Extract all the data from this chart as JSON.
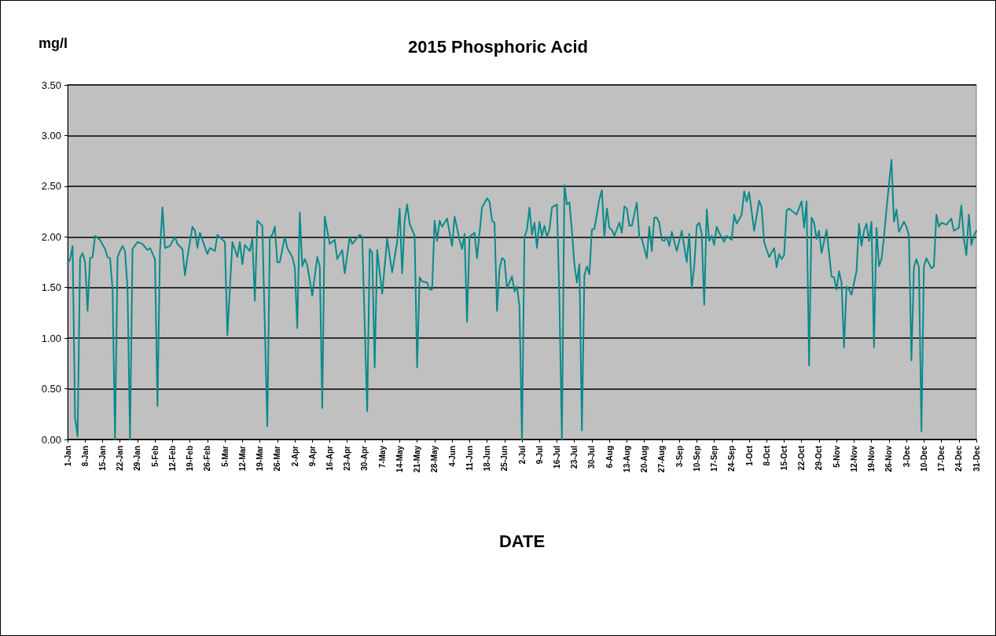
{
  "chart_data": {
    "type": "line",
    "title": "2015 Phosphoric Acid",
    "xlabel": "DATE",
    "ylabel": "mg/l",
    "x": [
      "--01-01",
      "--01-02",
      "--01-03",
      "--01-04",
      "--01-05",
      "--01-06",
      "--01-07",
      "--01-08",
      "--01-09",
      "--01-10",
      "--01-11",
      "--01-12",
      "--01-14",
      "--01-16",
      "--01-17",
      "--01-18",
      "--01-19",
      "--01-20",
      "--01-21",
      "--01-22",
      "--01-23",
      "--01-24",
      "--01-25",
      "--01-26",
      "--01-27",
      "--01-29",
      "--01-31",
      "--02-02",
      "--02-03",
      "--02-05",
      "--02-06",
      "--02-07",
      "--02-08",
      "--02-09",
      "--02-11",
      "--02-13",
      "--02-14",
      "--02-16",
      "--02-17",
      "--02-18",
      "--02-20",
      "--02-21",
      "--02-22",
      "--02-23",
      "--02-26",
      "--02-27",
      "--03-01",
      "--03-02",
      "--03-05",
      "--03-06",
      "--03-08",
      "--03-10",
      "--03-11",
      "--03-12",
      "--03-13",
      "--03-15",
      "--03-16",
      "--03-17",
      "--03-18",
      "--03-20",
      "--03-22",
      "--03-23",
      "--03-24",
      "--03-25",
      "--03-26",
      "--03-27",
      "--03-29",
      "--03-30",
      "--04-01",
      "--04-02",
      "--04-03",
      "--04-04",
      "--04-05",
      "--04-06",
      "--04-07",
      "--04-09",
      "--04-11",
      "--04-12",
      "--04-13",
      "--04-14",
      "--04-16",
      "--04-18",
      "--04-19",
      "--04-21",
      "--04-22",
      "--04-24",
      "--04-25",
      "--04-28",
      "--04-29",
      "--05-01",
      "--05-02",
      "--05-03",
      "--05-04",
      "--05-05",
      "--05-07",
      "--05-09",
      "--05-11",
      "--05-13",
      "--05-14",
      "--05-15",
      "--05-16",
      "--05-17",
      "--05-18",
      "--05-20",
      "--05-21",
      "--05-22",
      "--05-23",
      "--05-25",
      "--05-26",
      "--05-27",
      "--05-28",
      "--05-29",
      "--05-30",
      "--05-31",
      "--06-02",
      "--06-04",
      "--06-05",
      "--06-07",
      "--06-08",
      "--06-09",
      "--06-10",
      "--06-11",
      "--06-13",
      "--06-14",
      "--06-16",
      "--06-18",
      "--06-19",
      "--06-20",
      "--06-21",
      "--06-22",
      "--06-23",
      "--06-24",
      "--06-25",
      "--06-26",
      "--06-28",
      "--06-29",
      "--06-30",
      "--07-01",
      "--07-02",
      "--07-03",
      "--07-04",
      "--07-05",
      "--07-06",
      "--07-07",
      "--07-08",
      "--07-09",
      "--07-10",
      "--07-11",
      "--07-12",
      "--07-13",
      "--07-14",
      "--07-16",
      "--07-17",
      "--07-18",
      "--07-19",
      "--07-20",
      "--07-21",
      "--07-22",
      "--07-23",
      "--07-24",
      "--07-25",
      "--07-26",
      "--07-27",
      "--07-28",
      "--07-29",
      "--07-30",
      "--07-31",
      "--08-02",
      "--08-03",
      "--08-04",
      "--08-05",
      "--08-06",
      "--08-07",
      "--08-08",
      "--08-10",
      "--08-11",
      "--08-12",
      "--08-13",
      "--08-14",
      "--08-15",
      "--08-17",
      "--08-18",
      "--08-19",
      "--08-21",
      "--08-22",
      "--08-23",
      "--08-24",
      "--08-25",
      "--08-26",
      "--08-27",
      "--08-28",
      "--08-29",
      "--08-30",
      "--08-31",
      "--09-02",
      "--09-04",
      "--09-06",
      "--09-07",
      "--09-08",
      "--09-09",
      "--09-10",
      "--09-11",
      "--09-12",
      "--09-13",
      "--09-14",
      "--09-15",
      "--09-16",
      "--09-17",
      "--09-18",
      "--09-19",
      "--09-21",
      "--09-22",
      "--09-24",
      "--09-25",
      "--09-26",
      "--09-28",
      "--09-29",
      "--09-30",
      "--10-01",
      "--10-03",
      "--10-05",
      "--10-06",
      "--10-07",
      "--10-09",
      "--10-11",
      "--10-12",
      "--10-13",
      "--10-14",
      "--10-15",
      "--10-16",
      "--10-17",
      "--10-20",
      "--10-22",
      "--10-23",
      "--10-24",
      "--10-25",
      "--10-26",
      "--10-27",
      "--10-28",
      "--10-29",
      "--10-30",
      "--11-01",
      "--11-03",
      "--11-04",
      "--11-05",
      "--11-06",
      "--11-07",
      "--11-08",
      "--11-09",
      "--11-10",
      "--11-11",
      "--11-13",
      "--11-14",
      "--11-15",
      "--11-16",
      "--11-17",
      "--11-18",
      "--11-19",
      "--11-20",
      "--11-21",
      "--11-22",
      "--11-23",
      "--11-24",
      "--11-25",
      "--11-27",
      "--11-28",
      "--11-29",
      "--11-30",
      "--12-02",
      "--12-03",
      "--12-04",
      "--12-05",
      "--12-06",
      "--12-07",
      "--12-08",
      "--12-09",
      "--12-10",
      "--12-11",
      "--12-13",
      "--12-14",
      "--12-15",
      "--12-16",
      "--12-17",
      "--12-19",
      "--12-21",
      "--12-22",
      "--12-24",
      "--12-25",
      "--12-26",
      "--12-27",
      "--12-28",
      "--12-29",
      "--12-30",
      "--12-31"
    ],
    "series": [
      {
        "color": "#0a8a8a",
        "values": [
          1.74,
          1.78,
          1.91,
          0.21,
          0.03,
          1.79,
          1.84,
          1.75,
          1.27,
          1.79,
          1.8,
          2.01,
          1.97,
          1.88,
          1.8,
          1.79,
          1.49,
          0.0,
          1.8,
          1.86,
          1.91,
          1.86,
          1.49,
          0.0,
          1.88,
          1.95,
          1.93,
          1.87,
          1.89,
          1.78,
          0.33,
          1.86,
          2.29,
          1.89,
          1.91,
          2.0,
          1.93,
          1.88,
          1.62,
          1.8,
          2.1,
          2.06,
          1.89,
          2.04,
          1.83,
          1.89,
          1.86,
          2.02,
          1.95,
          1.03,
          1.95,
          1.8,
          1.95,
          1.73,
          1.92,
          1.86,
          1.98,
          1.37,
          2.16,
          2.11,
          0.13,
          2.0,
          2.02,
          2.1,
          1.75,
          1.75,
          2.0,
          1.89,
          1.8,
          1.7,
          1.1,
          2.24,
          1.71,
          1.78,
          1.72,
          1.42,
          1.8,
          1.71,
          0.31,
          2.2,
          1.93,
          1.97,
          1.78,
          1.87,
          1.64,
          2.0,
          1.93,
          2.02,
          2.0,
          0.28,
          1.88,
          1.84,
          0.71,
          1.87,
          1.44,
          1.98,
          1.65,
          1.95,
          2.28,
          1.64,
          2.16,
          2.32,
          2.13,
          2.01,
          0.71,
          1.6,
          1.56,
          1.55,
          1.48,
          1.48,
          2.16,
          1.96,
          2.16,
          2.1,
          2.18,
          1.91,
          2.2,
          1.97,
          1.88,
          2.03,
          1.16,
          2.0,
          2.04,
          1.79,
          2.29,
          2.38,
          2.35,
          2.16,
          2.14,
          1.27,
          1.68,
          1.79,
          1.77,
          1.49,
          1.61,
          1.46,
          1.51,
          1.31,
          0.0,
          2.0,
          2.07,
          2.29,
          2.02,
          2.14,
          1.89,
          2.15,
          2.01,
          2.11,
          2.0,
          2.07,
          2.29,
          2.32,
          1.37,
          0.0,
          2.51,
          2.32,
          2.34,
          2.06,
          1.73,
          1.55,
          1.73,
          0.09,
          1.62,
          1.71,
          1.63,
          2.07,
          2.08,
          2.37,
          2.46,
          2.0,
          2.28,
          2.09,
          2.07,
          2.01,
          2.14,
          2.04,
          2.3,
          2.28,
          2.11,
          2.11,
          2.34,
          2.0,
          1.98,
          1.79,
          2.1,
          1.86,
          2.19,
          2.19,
          2.14,
          1.97,
          1.96,
          2.0,
          1.91,
          2.05,
          1.86,
          2.06,
          1.75,
          2.03,
          1.49,
          1.71,
          2.11,
          2.14,
          2.03,
          1.33,
          2.27,
          1.96,
          2.01,
          1.92,
          2.1,
          2.04,
          1.95,
          2.01,
          1.97,
          2.22,
          2.13,
          2.22,
          2.45,
          2.35,
          2.44,
          2.06,
          2.36,
          2.29,
          1.95,
          1.8,
          1.89,
          1.7,
          1.83,
          1.78,
          1.82,
          2.26,
          2.28,
          2.22,
          2.35,
          2.09,
          2.35,
          0.73,
          2.19,
          2.14,
          1.98,
          2.06,
          1.84,
          2.07,
          1.61,
          1.6,
          1.48,
          1.66,
          1.55,
          0.91,
          1.51,
          1.48,
          1.43,
          1.66,
          2.13,
          1.91,
          2.06,
          2.13,
          1.96,
          2.15,
          0.91,
          2.09,
          1.71,
          1.78,
          2.0,
          2.27,
          2.76,
          2.15,
          2.27,
          2.05,
          2.15,
          2.1,
          2.01,
          0.78,
          1.7,
          1.78,
          1.7,
          0.08,
          1.71,
          1.79,
          1.69,
          1.71,
          2.22,
          2.1,
          2.14,
          2.12,
          2.18,
          2.06,
          2.09,
          2.31,
          1.98,
          1.82,
          2.22,
          1.92,
          2.01,
          2.06
        ]
      }
    ],
    "xlim": [
      "--01-01",
      "--12-31"
    ],
    "xticks": [
      {
        "value": "--01-01",
        "label": "1-Jan"
      },
      {
        "value": "--01-08",
        "label": "8-Jan"
      },
      {
        "value": "--01-15",
        "label": "15-Jan"
      },
      {
        "value": "--01-22",
        "label": "22-Jan"
      },
      {
        "value": "--01-29",
        "label": "29-Jan"
      },
      {
        "value": "--02-05",
        "label": "5-Feb"
      },
      {
        "value": "--02-12",
        "label": "12-Feb"
      },
      {
        "value": "--02-19",
        "label": "19-Feb"
      },
      {
        "value": "--02-26",
        "label": "26-Feb"
      },
      {
        "value": "--03-05",
        "label": "5-Mar"
      },
      {
        "value": "--03-12",
        "label": "12-Mar"
      },
      {
        "value": "--03-19",
        "label": "19-Mar"
      },
      {
        "value": "--03-26",
        "label": "26-Mar"
      },
      {
        "value": "--04-02",
        "label": "2-Apr"
      },
      {
        "value": "--04-09",
        "label": "9-Apr"
      },
      {
        "value": "--04-16",
        "label": "16-Apr"
      },
      {
        "value": "--04-23",
        "label": "23-Apr"
      },
      {
        "value": "--04-30",
        "label": "30-Apr"
      },
      {
        "value": "--05-07",
        "label": "7-May"
      },
      {
        "value": "--05-14",
        "label": "14-May"
      },
      {
        "value": "--05-21",
        "label": "21-May"
      },
      {
        "value": "--05-28",
        "label": "28-May"
      },
      {
        "value": "--06-04",
        "label": "4-Jun"
      },
      {
        "value": "--06-11",
        "label": "11-Jun"
      },
      {
        "value": "--06-18",
        "label": "18-Jun"
      },
      {
        "value": "--06-25",
        "label": "25-Jun"
      },
      {
        "value": "--07-02",
        "label": "2-Jul"
      },
      {
        "value": "--07-09",
        "label": "9-Jul"
      },
      {
        "value": "--07-16",
        "label": "16-Jul"
      },
      {
        "value": "--07-23",
        "label": "23-Jul"
      },
      {
        "value": "--07-30",
        "label": "30-Jul"
      },
      {
        "value": "--08-06",
        "label": "6-Aug"
      },
      {
        "value": "--08-13",
        "label": "13-Aug"
      },
      {
        "value": "--08-20",
        "label": "20-Aug"
      },
      {
        "value": "--08-27",
        "label": "27-Aug"
      },
      {
        "value": "--09-03",
        "label": "3-Sep"
      },
      {
        "value": "--09-10",
        "label": "10-Sep"
      },
      {
        "value": "--09-17",
        "label": "17-Sep"
      },
      {
        "value": "--09-24",
        "label": "24-Sep"
      },
      {
        "value": "--10-01",
        "label": "1-Oct"
      },
      {
        "value": "--10-08",
        "label": "8-Oct"
      },
      {
        "value": "--10-15",
        "label": "15-Oct"
      },
      {
        "value": "--10-22",
        "label": "22-Oct"
      },
      {
        "value": "--10-29",
        "label": "29-Oct"
      },
      {
        "value": "--11-05",
        "label": "5-Nov"
      },
      {
        "value": "--11-12",
        "label": "12-Nov"
      },
      {
        "value": "--11-19",
        "label": "19-Nov"
      },
      {
        "value": "--11-26",
        "label": "26-Nov"
      },
      {
        "value": "--12-03",
        "label": "3-Dec"
      },
      {
        "value": "--12-10",
        "label": "10-Dec"
      },
      {
        "value": "--12-17",
        "label": "17-Dec"
      },
      {
        "value": "--12-24",
        "label": "24-Dec"
      },
      {
        "value": "--12-31",
        "label": "31-Dec"
      }
    ],
    "ylim": [
      0,
      3.5
    ],
    "yticks": [
      {
        "value": 0,
        "label": "0.00"
      },
      {
        "value": 0.5,
        "label": "0.50"
      },
      {
        "value": 1,
        "label": "1.00"
      },
      {
        "value": 1.5,
        "label": "1.50"
      },
      {
        "value": 2,
        "label": "2.00"
      },
      {
        "value": 2.5,
        "label": "2.50"
      },
      {
        "value": 3,
        "label": "3.00"
      },
      {
        "value": 3.5,
        "label": "3.50"
      }
    ],
    "grid": "y",
    "marker": "none",
    "line_style": "solid"
  }
}
